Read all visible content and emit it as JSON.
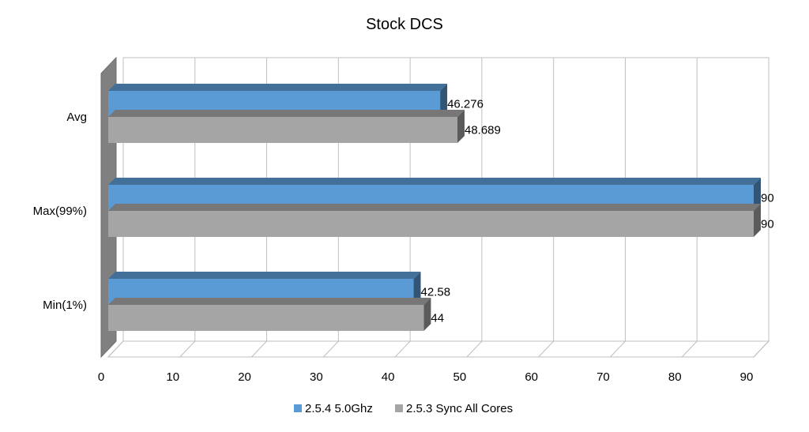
{
  "chart_data": {
    "type": "bar",
    "orientation": "horizontal",
    "title": "Stock DCS",
    "xlabel": "",
    "ylabel": "",
    "categories": [
      "Avg",
      "Max(99%)",
      "Min(1%)"
    ],
    "series": [
      {
        "name": "2.5.4 5.0Ghz",
        "values": [
          46.276,
          90,
          42.58
        ],
        "labels": [
          "46.276",
          "90",
          "42.58"
        ],
        "color": "#5B9BD5"
      },
      {
        "name": "2.5.3 Sync All Cores",
        "values": [
          48.689,
          90,
          44
        ],
        "labels": [
          "48.689",
          "90",
          "44"
        ],
        "color": "#A5A5A5"
      }
    ],
    "xlim": [
      0,
      90
    ],
    "xticks": [
      "0",
      "10",
      "20",
      "30",
      "40",
      "50",
      "60",
      "70",
      "80",
      "90"
    ],
    "grid": true,
    "three_d": true,
    "legend": "bottom"
  }
}
